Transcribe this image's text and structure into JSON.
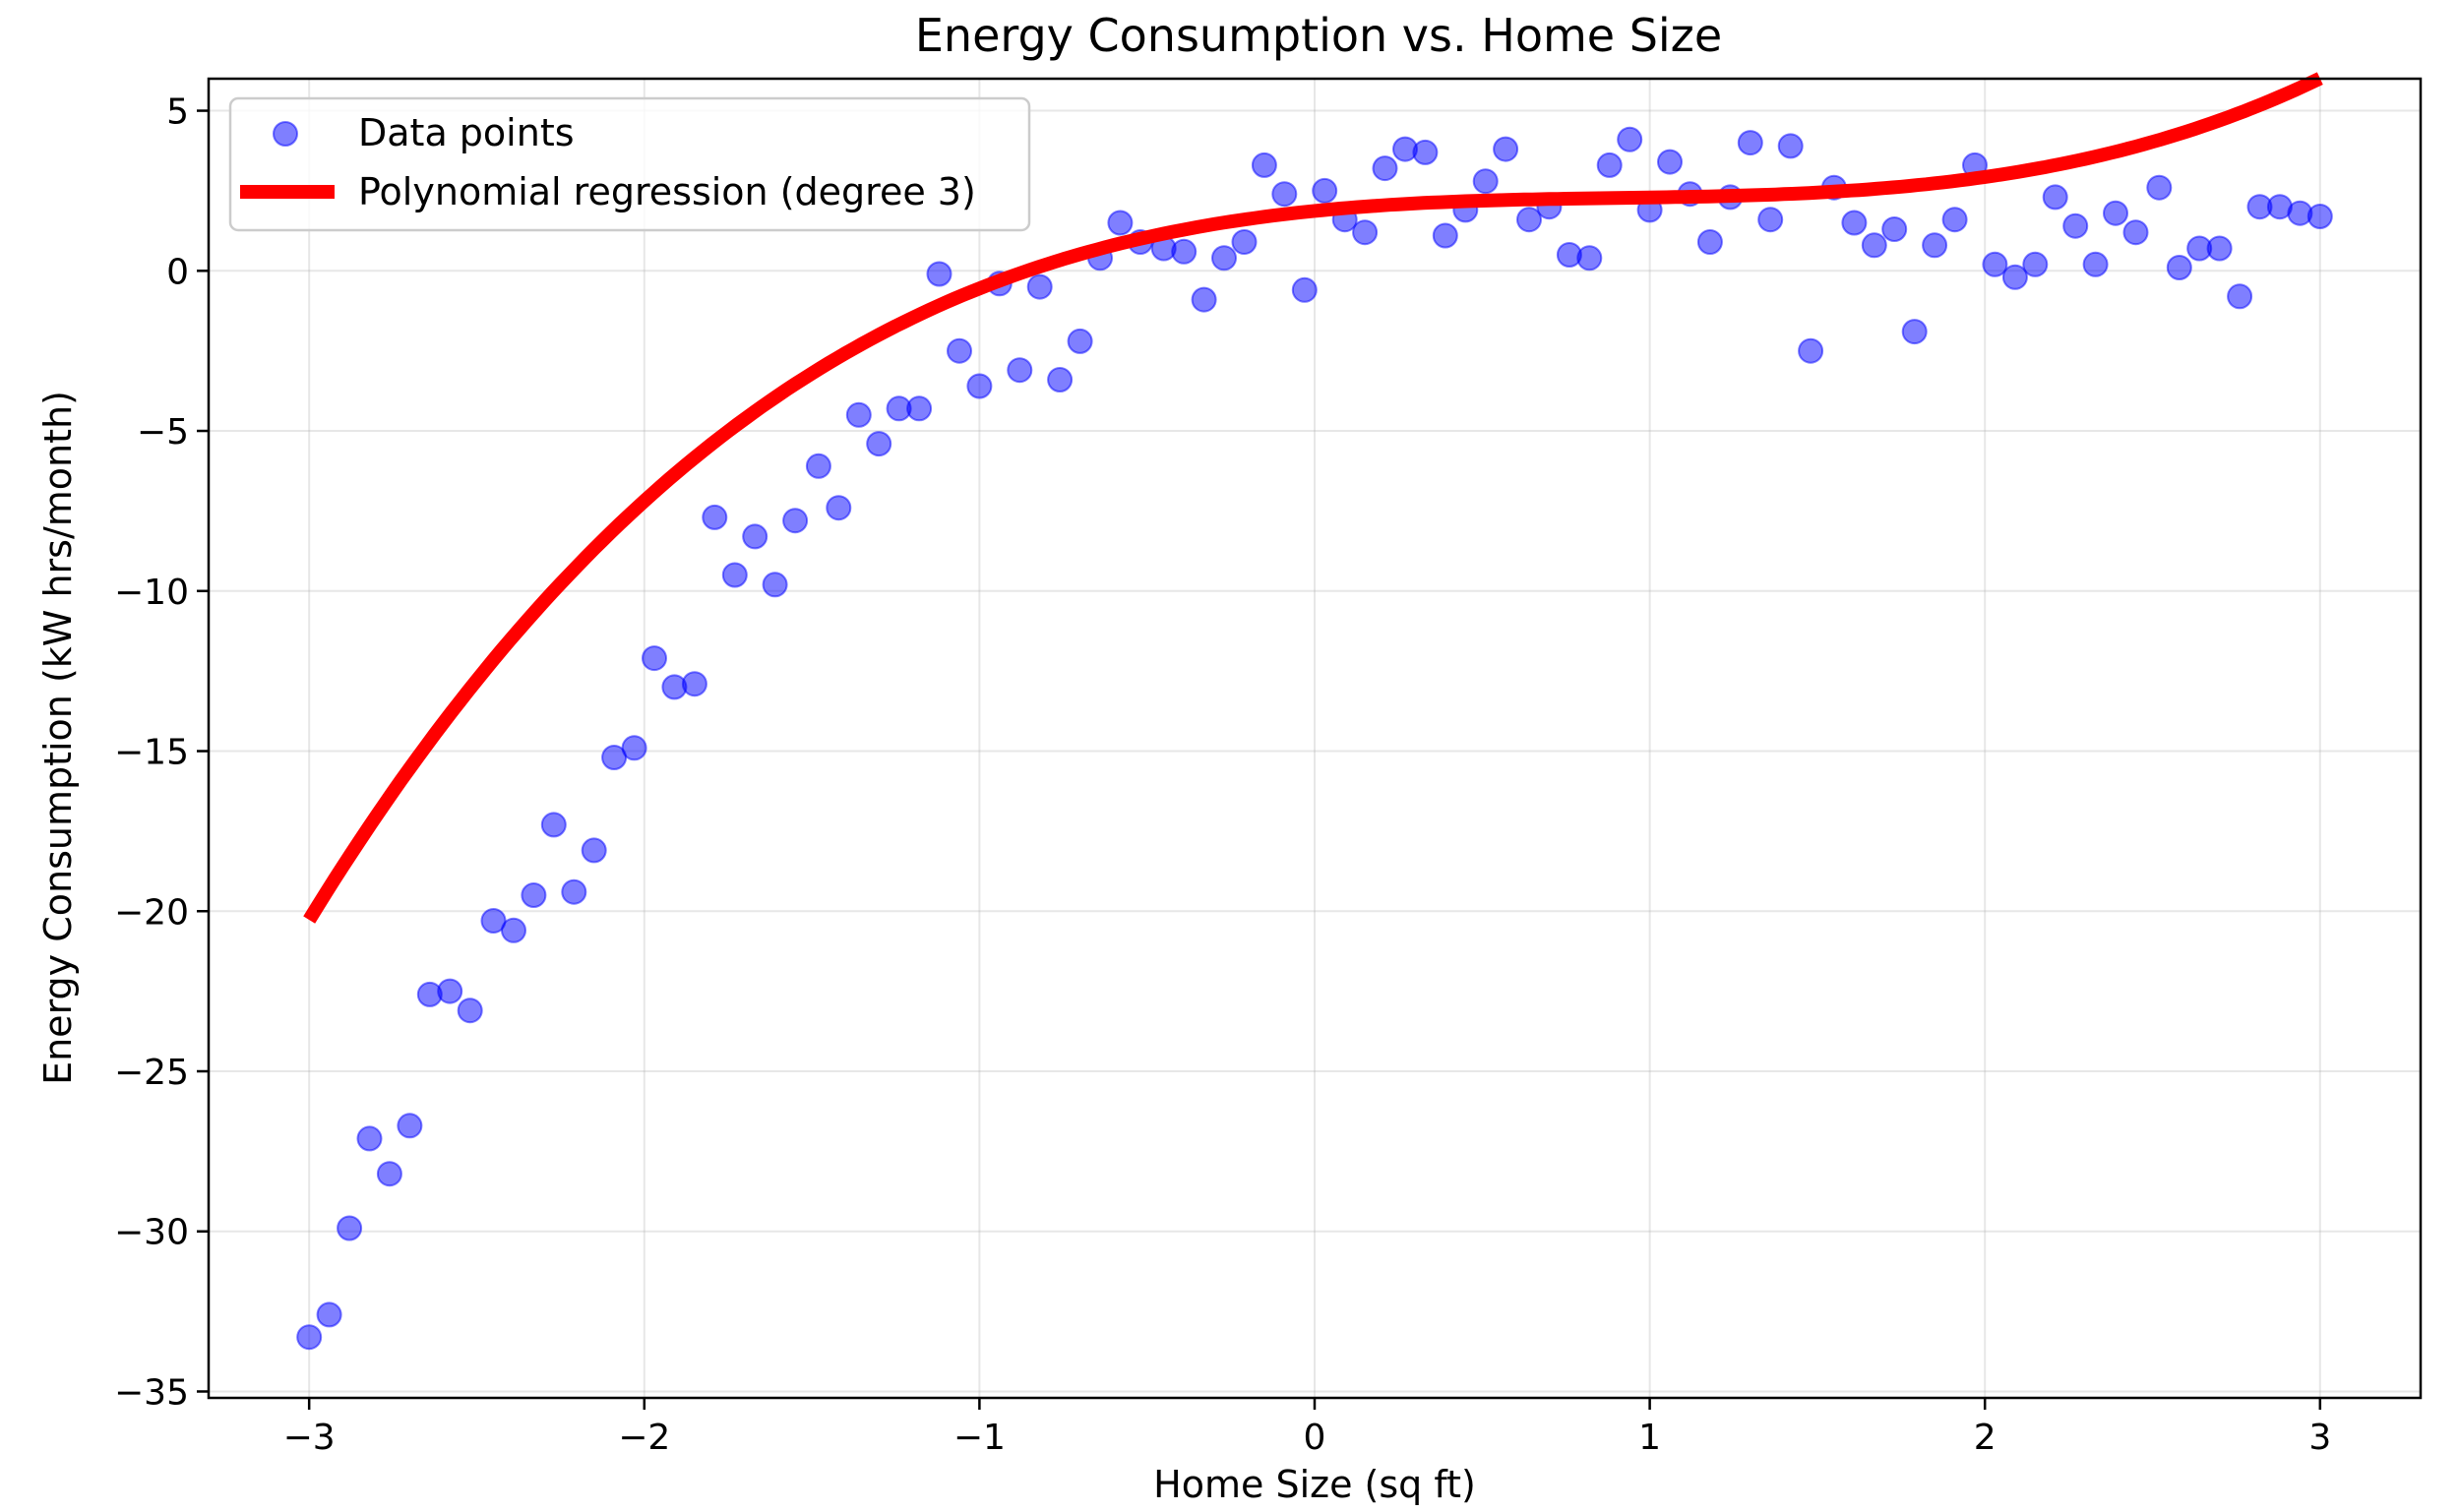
{
  "chart_data": {
    "type": "scatter",
    "title": "Energy Consumption vs. Home Size",
    "xlabel": "Home Size (sq ft)",
    "ylabel": "Energy Consumption (kW hrs/month)",
    "xlim": [
      -3.3,
      3.3
    ],
    "ylim": [
      -35.2,
      6.0
    ],
    "grid": true,
    "legend_position": "upper left",
    "x_ticks": [
      {
        "value": -3,
        "label": "−3"
      },
      {
        "value": -2,
        "label": "−2"
      },
      {
        "value": -1,
        "label": "−1"
      },
      {
        "value": 0,
        "label": "0"
      },
      {
        "value": 1,
        "label": "1"
      },
      {
        "value": 2,
        "label": "2"
      },
      {
        "value": 3,
        "label": "3"
      }
    ],
    "y_ticks": [
      {
        "value": 5,
        "label": "5"
      },
      {
        "value": 0,
        "label": "0"
      },
      {
        "value": -5,
        "label": "−5"
      },
      {
        "value": -10,
        "label": "−10"
      },
      {
        "value": -15,
        "label": "−15"
      },
      {
        "value": -20,
        "label": "−20"
      },
      {
        "value": -25,
        "label": "−25"
      },
      {
        "value": -30,
        "label": "−30"
      },
      {
        "value": -35,
        "label": "−35"
      }
    ],
    "series": [
      {
        "name": "Data points",
        "kind": "scatter",
        "color": "#0000ff",
        "opacity": 0.5,
        "points": [
          [
            -3.0,
            -33.3
          ],
          [
            -2.94,
            -32.6
          ],
          [
            -2.88,
            -29.9
          ],
          [
            -2.82,
            -27.1
          ],
          [
            -2.76,
            -28.2
          ],
          [
            -2.7,
            -26.7
          ],
          [
            -2.64,
            -22.6
          ],
          [
            -2.58,
            -22.5
          ],
          [
            -2.52,
            -23.1
          ],
          [
            -2.45,
            -20.3
          ],
          [
            -2.39,
            -20.6
          ],
          [
            -2.33,
            -19.5
          ],
          [
            -2.27,
            -17.3
          ],
          [
            -2.21,
            -19.4
          ],
          [
            -2.15,
            -18.1
          ],
          [
            -2.09,
            -15.2
          ],
          [
            -2.03,
            -14.9
          ],
          [
            -1.97,
            -12.1
          ],
          [
            -1.91,
            -13.0
          ],
          [
            -1.85,
            -12.9
          ],
          [
            -1.79,
            -7.7
          ],
          [
            -1.73,
            -9.5
          ],
          [
            -1.67,
            -8.3
          ],
          [
            -1.61,
            -9.8
          ],
          [
            -1.55,
            -7.8
          ],
          [
            -1.48,
            -6.1
          ],
          [
            -1.42,
            -7.4
          ],
          [
            -1.36,
            -4.5
          ],
          [
            -1.3,
            -5.4
          ],
          [
            -1.24,
            -4.3
          ],
          [
            -1.18,
            -4.3
          ],
          [
            -1.12,
            -0.1
          ],
          [
            -1.06,
            -2.5
          ],
          [
            -1.0,
            -3.6
          ],
          [
            -0.94,
            -0.4
          ],
          [
            -0.88,
            -3.1
          ],
          [
            -0.82,
            -0.5
          ],
          [
            -0.76,
            -3.4
          ],
          [
            -0.7,
            -2.2
          ],
          [
            -0.64,
            0.4
          ],
          [
            -0.58,
            1.5
          ],
          [
            -0.52,
            0.9
          ],
          [
            -0.45,
            0.7
          ],
          [
            -0.39,
            0.6
          ],
          [
            -0.33,
            -0.9
          ],
          [
            -0.27,
            0.4
          ],
          [
            -0.21,
            0.9
          ],
          [
            -0.15,
            3.3
          ],
          [
            -0.09,
            2.4
          ],
          [
            -0.03,
            -0.6
          ],
          [
            0.03,
            2.5
          ],
          [
            0.09,
            1.6
          ],
          [
            0.15,
            1.2
          ],
          [
            0.21,
            3.2
          ],
          [
            0.27,
            3.8
          ],
          [
            0.33,
            3.7
          ],
          [
            0.39,
            1.1
          ],
          [
            0.45,
            1.9
          ],
          [
            0.51,
            2.8
          ],
          [
            0.57,
            3.8
          ],
          [
            0.64,
            1.6
          ],
          [
            0.7,
            2.0
          ],
          [
            0.76,
            0.5
          ],
          [
            0.82,
            0.4
          ],
          [
            0.88,
            3.3
          ],
          [
            0.94,
            4.1
          ],
          [
            1.0,
            1.9
          ],
          [
            1.06,
            3.4
          ],
          [
            1.12,
            2.4
          ],
          [
            1.18,
            0.9
          ],
          [
            1.24,
            2.3
          ],
          [
            1.3,
            4.0
          ],
          [
            1.36,
            1.6
          ],
          [
            1.42,
            3.9
          ],
          [
            1.48,
            -2.5
          ],
          [
            1.55,
            2.6
          ],
          [
            1.61,
            1.5
          ],
          [
            1.67,
            0.8
          ],
          [
            1.73,
            1.3
          ],
          [
            1.79,
            -1.9
          ],
          [
            1.85,
            0.8
          ],
          [
            1.91,
            1.6
          ],
          [
            1.97,
            3.3
          ],
          [
            2.03,
            0.2
          ],
          [
            2.09,
            -0.2
          ],
          [
            2.15,
            0.2
          ],
          [
            2.21,
            2.3
          ],
          [
            2.27,
            1.4
          ],
          [
            2.33,
            0.2
          ],
          [
            2.39,
            1.8
          ],
          [
            2.45,
            1.2
          ],
          [
            2.52,
            2.6
          ],
          [
            2.58,
            0.1
          ],
          [
            2.64,
            0.7
          ],
          [
            2.7,
            0.7
          ],
          [
            2.76,
            -0.8
          ],
          [
            2.82,
            2.0
          ],
          [
            2.88,
            2.0
          ],
          [
            2.94,
            1.8
          ],
          [
            3.0,
            1.7
          ]
        ]
      },
      {
        "name": "Polynomial regression (degree 3)",
        "kind": "line",
        "color": "#ff0000",
        "x_range": [
          -3,
          3
        ],
        "cubic_coefficients": [
          0.37,
          -1.0,
          1.05,
          1.87
        ]
      }
    ]
  }
}
